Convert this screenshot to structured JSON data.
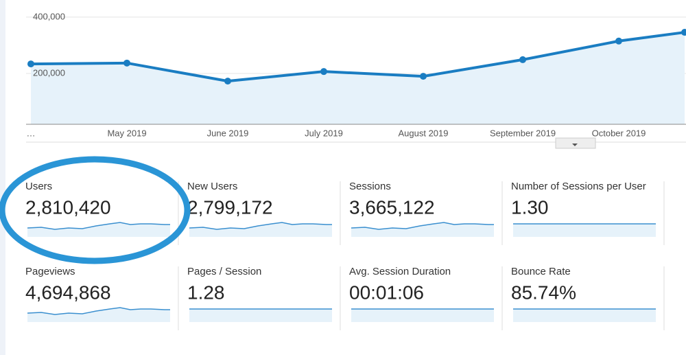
{
  "chart_data": {
    "type": "line",
    "categories": [
      "…",
      "May 2019",
      "June 2019",
      "July 2019",
      "August 2019",
      "September 2019",
      "October 2019",
      null
    ],
    "values": [
      234000,
      237000,
      173000,
      207000,
      190000,
      249000,
      315000,
      346000
    ],
    "color": "#1a7dc2",
    "ylim": [
      20000,
      424000
    ],
    "yticks": [
      {
        "value": 200000,
        "label": "200,000"
      },
      {
        "value": 400000,
        "label": "400,000"
      }
    ],
    "grid": true
  },
  "metrics": [
    {
      "label": "Users",
      "value": "2,810,420"
    },
    {
      "label": "New Users",
      "value": "2,799,172"
    },
    {
      "label": "Sessions",
      "value": "3,665,122"
    },
    {
      "label": "Number of Sessions per User",
      "value": "1.30"
    },
    {
      "label": "Pageviews",
      "value": "4,694,868"
    },
    {
      "label": "Pages / Session",
      "value": "1.28"
    },
    {
      "label": "Avg. Session Duration",
      "value": "00:01:06"
    },
    {
      "label": "Bounce Rate",
      "value": "85.74%"
    }
  ]
}
